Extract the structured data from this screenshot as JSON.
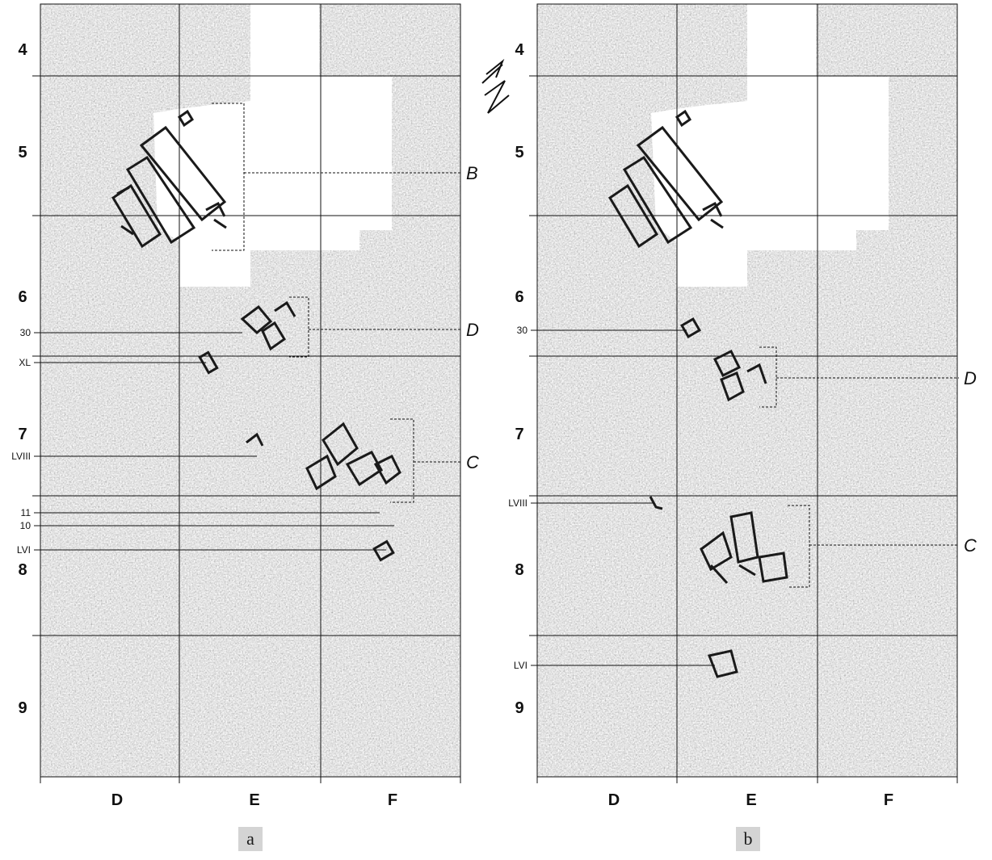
{
  "figure": {
    "panels": [
      {
        "id": "a",
        "caption": "a",
        "rows": [
          "4",
          "5",
          "6",
          "7",
          "8",
          "9"
        ],
        "cols": [
          "D",
          "E",
          "F"
        ],
        "callouts": [
          "B",
          "D",
          "C"
        ],
        "side_labels": [
          "30",
          "XL",
          "LVIII",
          "11",
          "10",
          "LVI"
        ]
      },
      {
        "id": "b",
        "caption": "b",
        "rows": [
          "4",
          "5",
          "6",
          "7",
          "8",
          "9"
        ],
        "cols": [
          "D",
          "E",
          "F"
        ],
        "callouts": [
          "D",
          "C"
        ],
        "side_labels": [
          "30",
          "LVIII",
          "LVI"
        ]
      }
    ],
    "north_arrow_label": "N",
    "colors": {
      "background": "#ffffff",
      "map_gray": "#c9c9c9",
      "grid_line": "#111111",
      "structure_outline": "#1a1a1a",
      "caption_box": "#d4d4d4"
    }
  }
}
